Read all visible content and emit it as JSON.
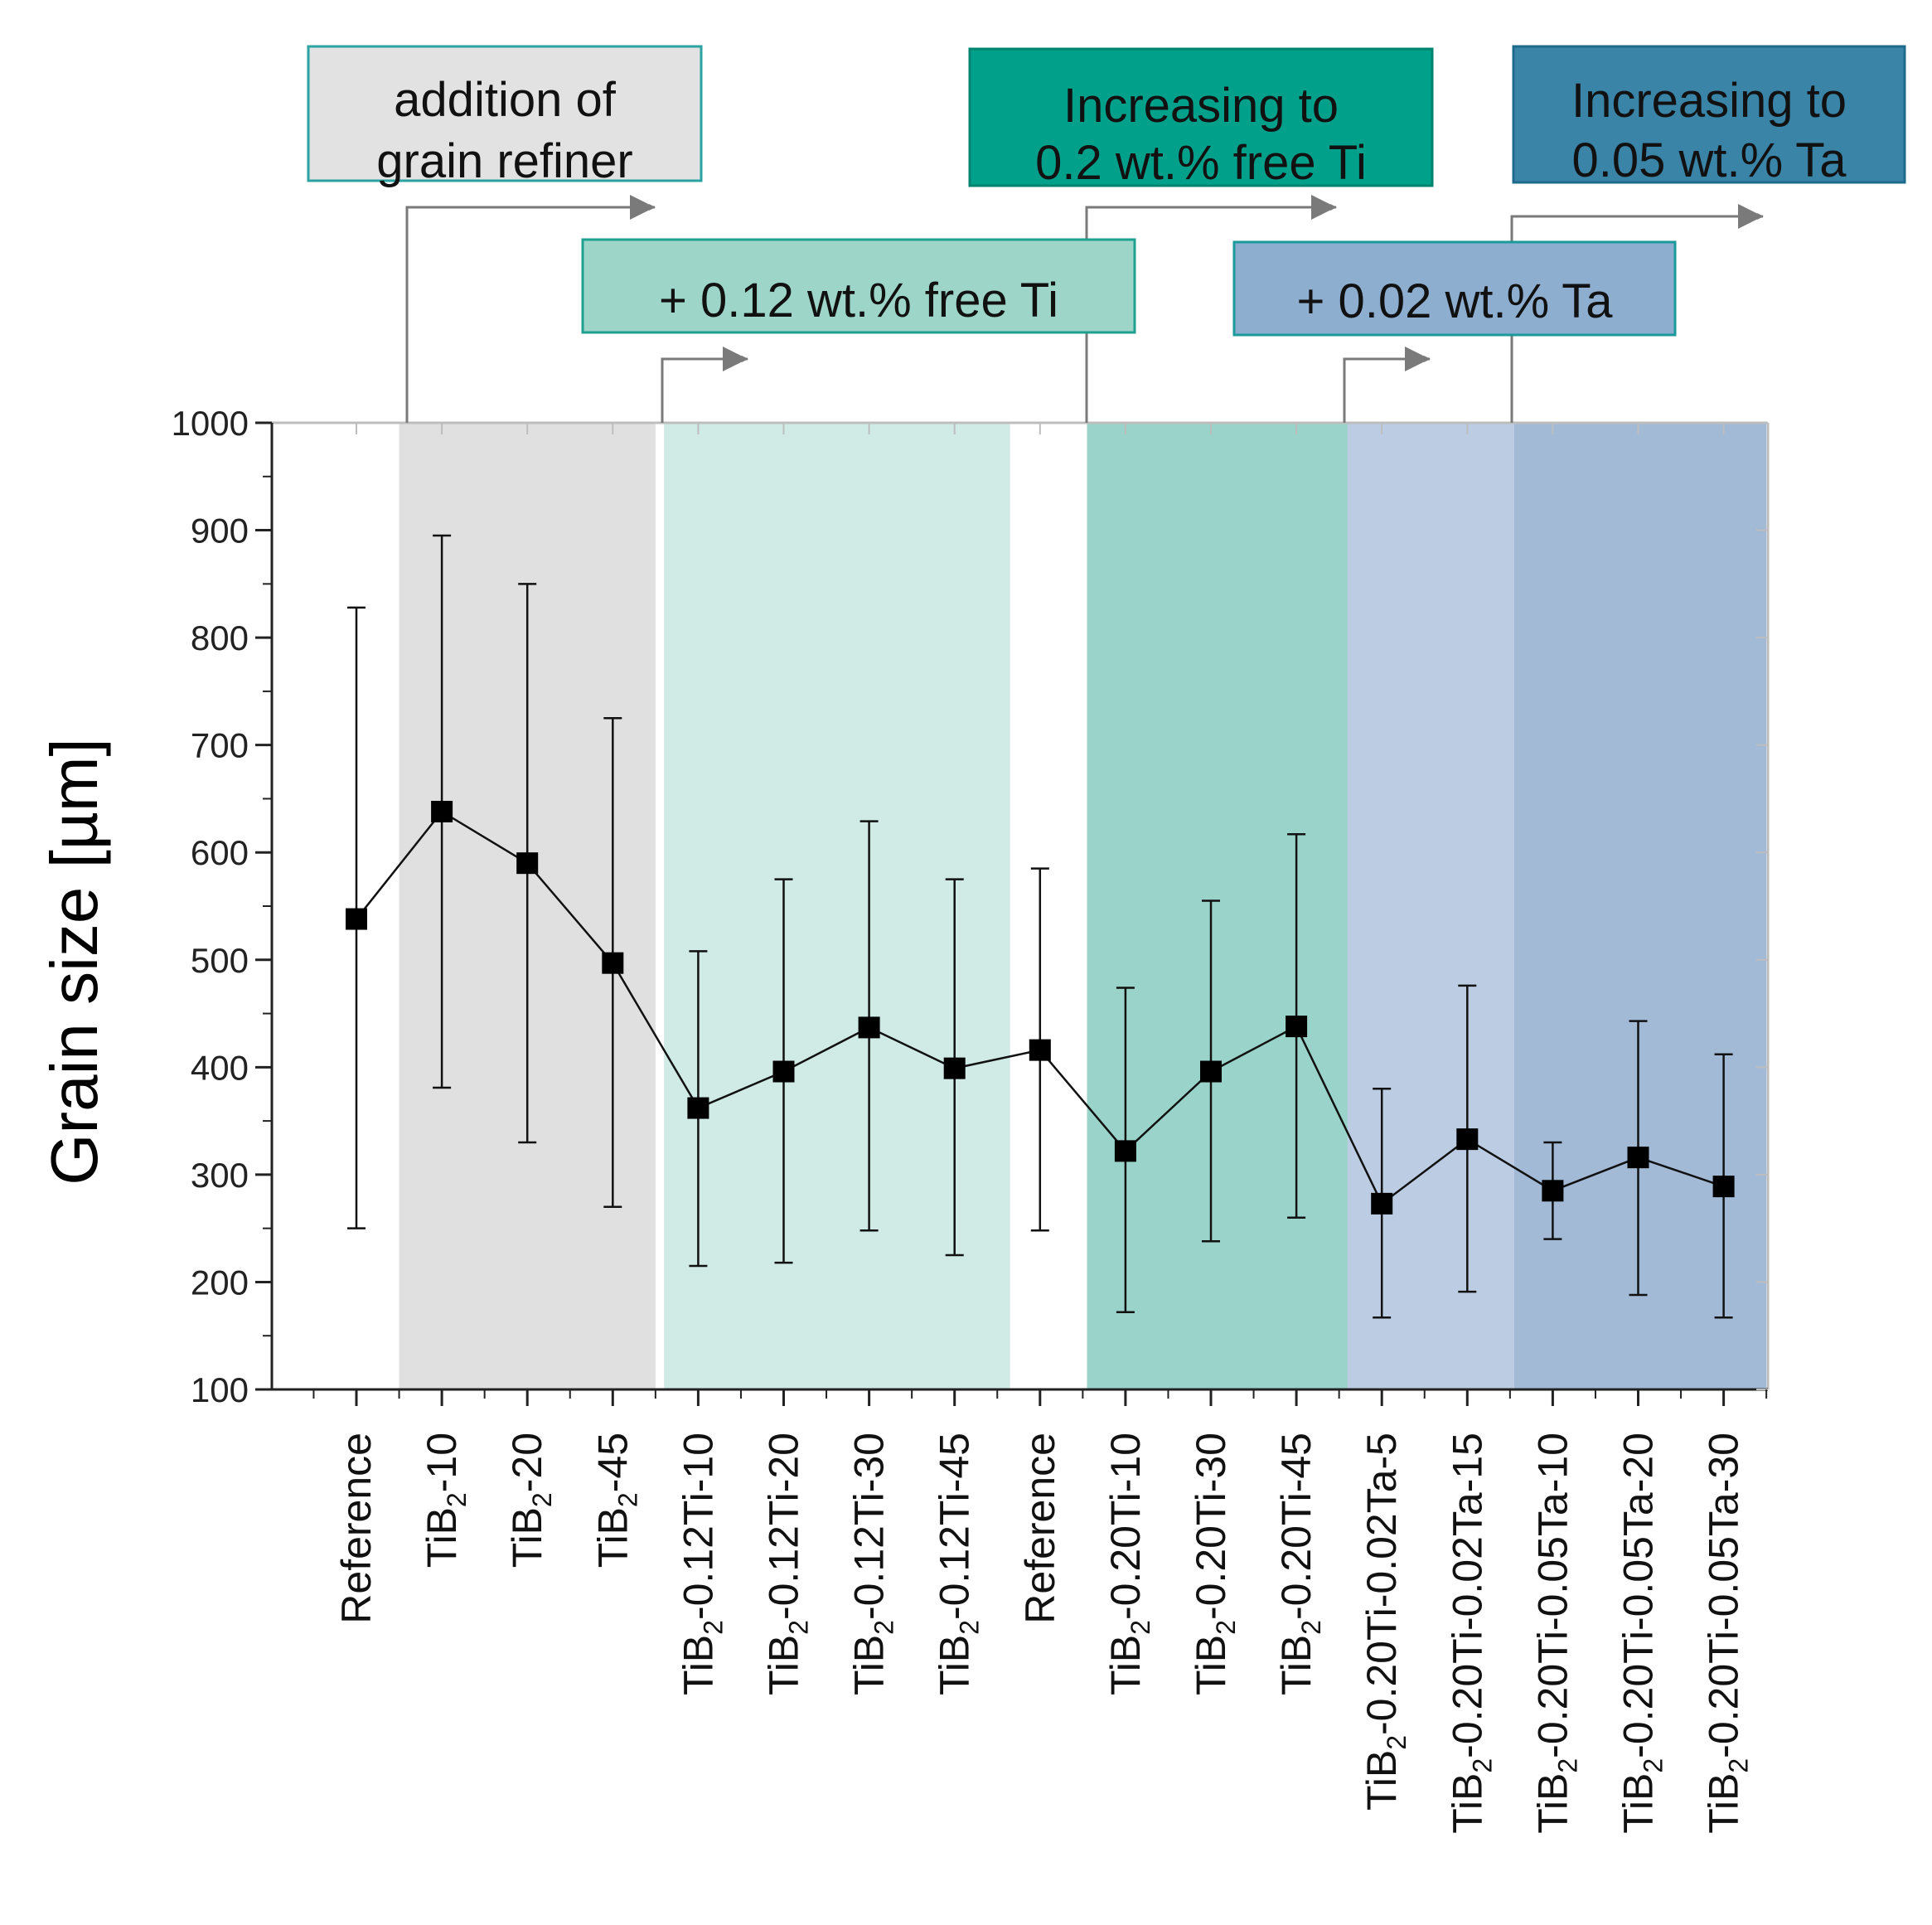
{
  "chart_data": {
    "type": "line",
    "title": "",
    "xlabel": "",
    "ylabel": "Grain size [µm]",
    "ylim": [
      100,
      1000
    ],
    "yticks": [
      100,
      200,
      300,
      400,
      500,
      600,
      700,
      800,
      900,
      1000
    ],
    "grid": false,
    "categories": [
      {
        "base": "Reference",
        "sub": "",
        "suffix": ""
      },
      {
        "base": "TiB",
        "sub": "2",
        "suffix": "-10"
      },
      {
        "base": "TiB",
        "sub": "2",
        "suffix": "-20"
      },
      {
        "base": "TiB",
        "sub": "2",
        "suffix": "-45"
      },
      {
        "base": "TiB",
        "sub": "2",
        "suffix": "-0.12Ti-10"
      },
      {
        "base": "TiB",
        "sub": "2",
        "suffix": "-0.12Ti-20"
      },
      {
        "base": "TiB",
        "sub": "2",
        "suffix": "-0.12Ti-30"
      },
      {
        "base": "TiB",
        "sub": "2",
        "suffix": "-0.12Ti-45"
      },
      {
        "base": "Reference",
        "sub": "",
        "suffix": ""
      },
      {
        "base": "TiB",
        "sub": "2",
        "suffix": "-0.20Ti-10"
      },
      {
        "base": "TiB",
        "sub": "2",
        "suffix": "-0.20Ti-30"
      },
      {
        "base": "TiB",
        "sub": "2",
        "suffix": "-0.20Ti-45"
      },
      {
        "base": "TiB",
        "sub": "2",
        "suffix": "-0.20Ti-0.02Ta-5"
      },
      {
        "base": "TiB",
        "sub": "2",
        "suffix": "-0.20Ti-0.02Ta-15"
      },
      {
        "base": "TiB",
        "sub": "2",
        "suffix": "-0.20Ti-0.05Ta-10"
      },
      {
        "base": "TiB",
        "sub": "2",
        "suffix": "-0.20Ti-0.05Ta-20"
      },
      {
        "base": "TiB",
        "sub": "2",
        "suffix": "-0.20Ti-0.05Ta-30"
      }
    ],
    "series": [
      {
        "name": "Grain size",
        "values": [
          538,
          638,
          590,
          497,
          362,
          396,
          437,
          399,
          416,
          322,
          396,
          438,
          273,
          333,
          285,
          316,
          289
        ],
        "err_low": [
          250,
          381,
          330,
          270,
          215,
          218,
          248,
          225,
          248,
          172,
          238,
          260,
          167,
          191,
          240,
          188,
          167
        ],
        "err_high": [
          828,
          895,
          850,
          725,
          508,
          575,
          629,
          575,
          585,
          474,
          555,
          617,
          380,
          476,
          330,
          443,
          412
        ]
      }
    ],
    "regions": [
      {
        "name": "grain refiner",
        "from": 0.5,
        "to": 3.5,
        "color": "#e0e0e0"
      },
      {
        "name": "0.12 free Ti",
        "from": 3.6,
        "to": 7.65,
        "color": "#d0eae6"
      },
      {
        "name": "0.2 free Ti",
        "from": 8.55,
        "to": 11.6,
        "color": "#99d3c9"
      },
      {
        "name": "0.02 Ta",
        "from": 11.6,
        "to": 13.55,
        "color": "#bccde3"
      },
      {
        "name": "0.05 Ta",
        "from": 13.55,
        "to": 16.5,
        "color": "#a2bad5"
      }
    ],
    "annotations": [
      {
        "lines": [
          "addition of",
          "grain refiner"
        ],
        "fill": "#e2e2e2",
        "stroke": "#2ba3a3"
      },
      {
        "lines": [
          "+ 0.12 wt.% free Ti"
        ],
        "fill": "#9dd6c9",
        "stroke": "#1fa090"
      },
      {
        "lines": [
          "Increasing to",
          "0.2 wt.% free Ti"
        ],
        "fill": "#00a08a",
        "stroke": "#00836f"
      },
      {
        "lines": [
          "+ 0.02 wt.% Ta"
        ],
        "fill": "#8eaed0",
        "stroke": "#1a9a9a"
      },
      {
        "lines": [
          "Increasing to",
          "0.05 wt.% Ta"
        ],
        "fill": "#3a84a8",
        "stroke": "#1e6a8c"
      }
    ]
  }
}
